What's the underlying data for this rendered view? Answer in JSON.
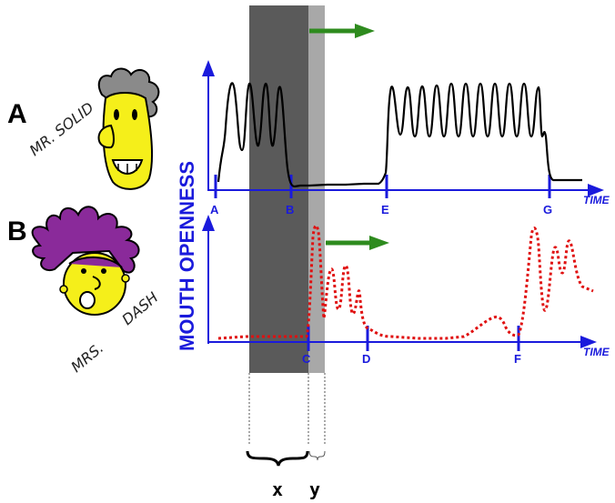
{
  "speakers": {
    "a": {
      "letter": "A",
      "name": "MR. SOLID"
    },
    "b": {
      "letter": "B",
      "name_part1": "MRS.",
      "name_part2": "DASH"
    }
  },
  "axes": {
    "y_label": "MOUTH OPENNESS",
    "x_label": "TIME"
  },
  "markers_top": [
    "A",
    "B",
    "E",
    "G"
  ],
  "markers_bottom": [
    "C",
    "D",
    "F"
  ],
  "intervals": {
    "x": "x",
    "y": "y"
  },
  "colors": {
    "axis": "#1a1adc",
    "signal_a": "#000000",
    "signal_b": "#e01010",
    "dark_band": "#5a5a5a",
    "light_band": "#a8a8a8",
    "arrow": "#2e8b1e",
    "hair_a": "#8a8a8a",
    "hair_b": "#8a2a9a",
    "face": "#f5ef1a"
  },
  "icons": [
    "right-arrow-icon",
    "speaker-a-face-icon",
    "speaker-b-face-icon"
  ]
}
